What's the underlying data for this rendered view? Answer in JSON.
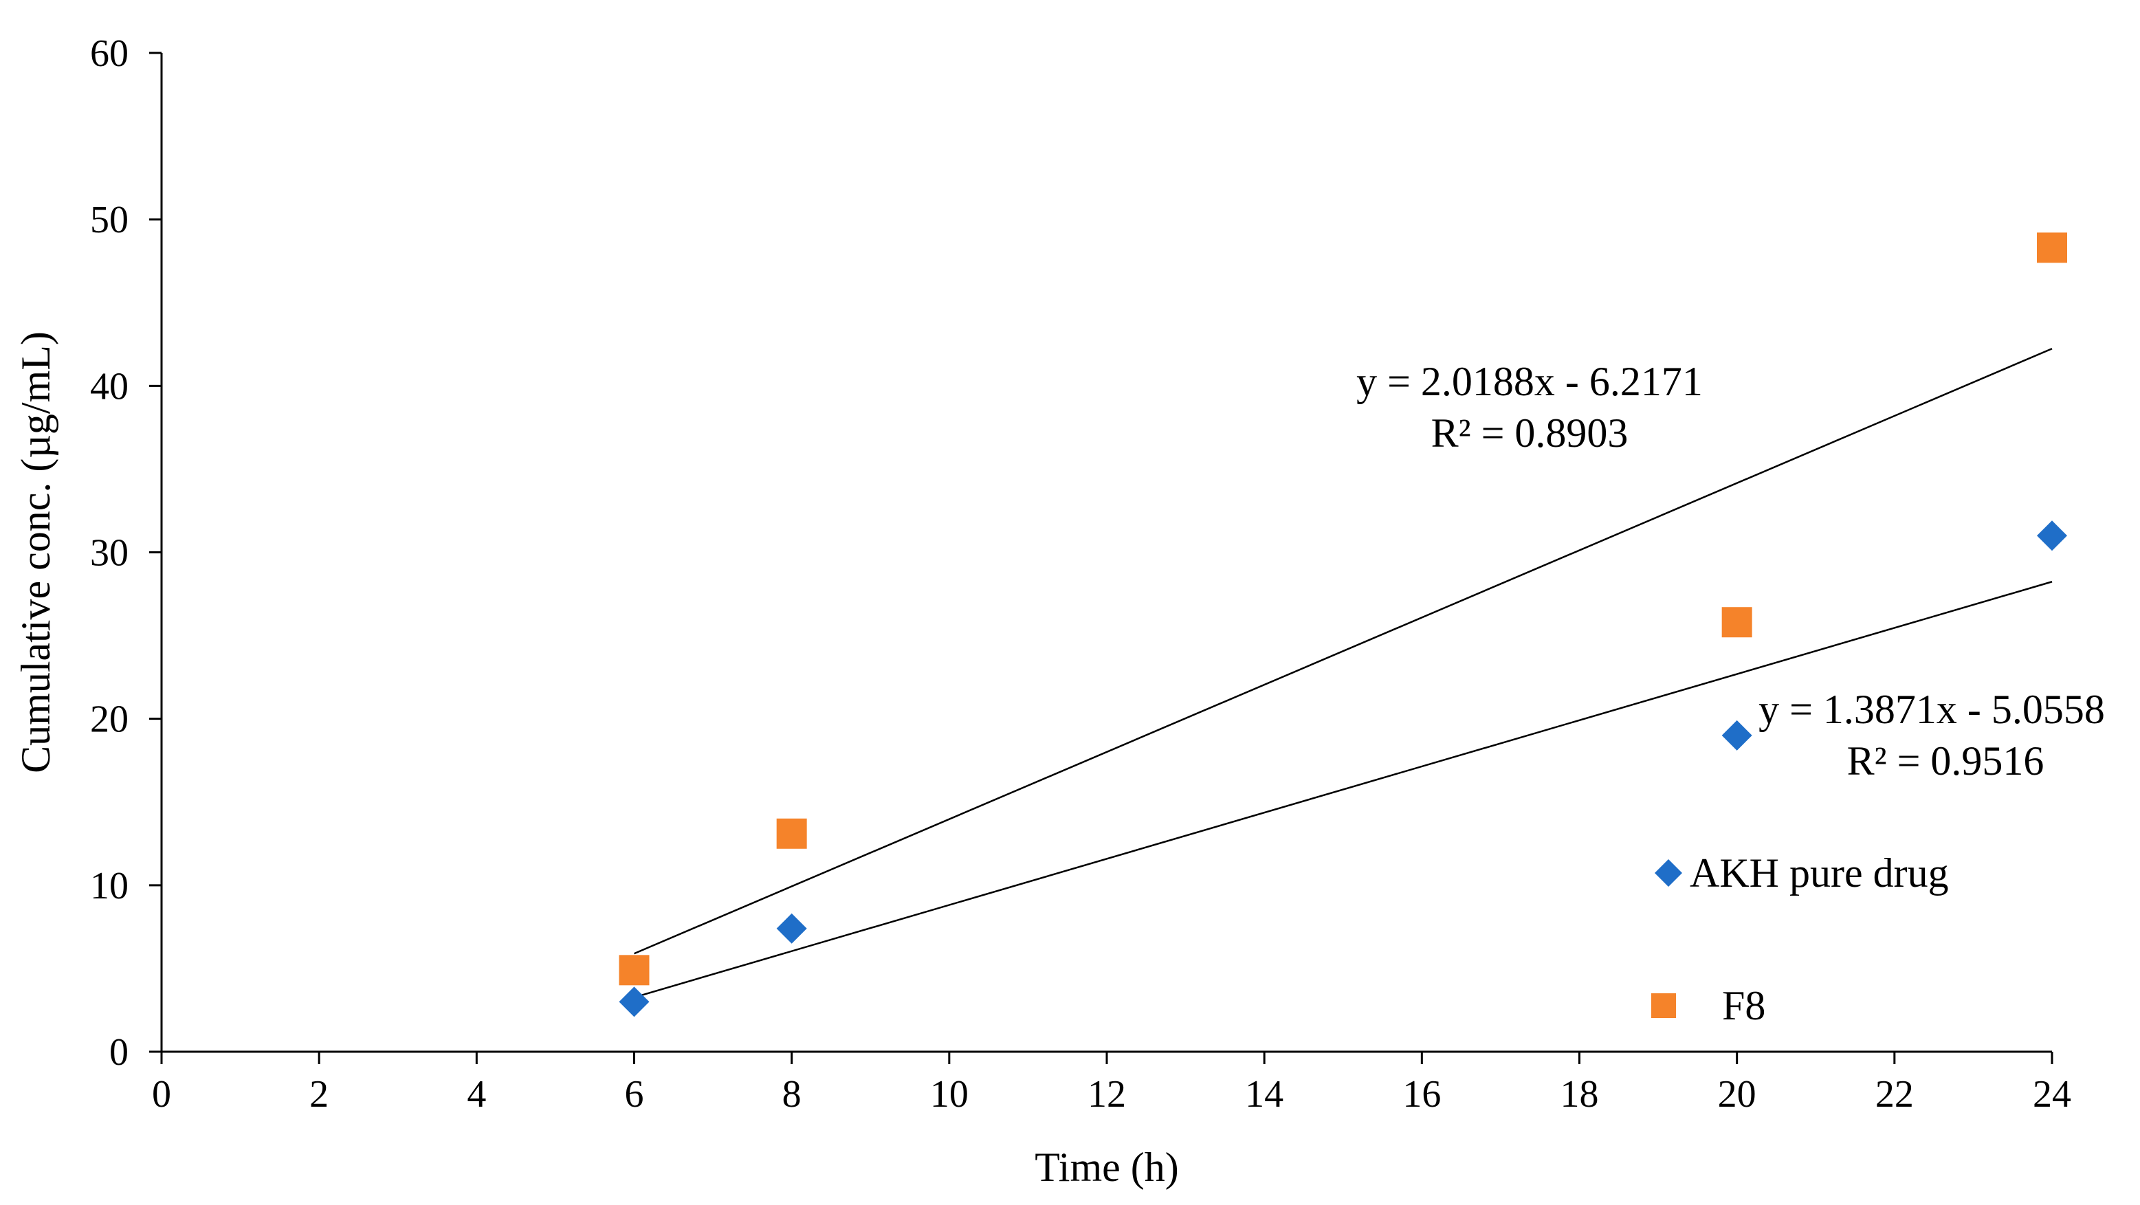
{
  "chart_data": {
    "type": "scatter",
    "title": "",
    "xlabel": "Time (h)",
    "ylabel": "Cumulative conc. (µg/mL)",
    "xlim": [
      0,
      24
    ],
    "ylim": [
      0,
      60
    ],
    "xticks": [
      0,
      2,
      4,
      6,
      8,
      10,
      12,
      14,
      16,
      18,
      20,
      22,
      24
    ],
    "yticks": [
      0,
      10,
      20,
      30,
      40,
      50,
      60
    ],
    "grid": false,
    "legend_position": "right",
    "series": [
      {
        "name": "AKH pure drug",
        "marker": "diamond",
        "color": "#1f6ec8",
        "x": [
          6,
          8,
          20,
          24
        ],
        "y": [
          3.0,
          7.4,
          19.0,
          31.0
        ],
        "trendline": {
          "slope": 1.3871,
          "intercept": -5.0558,
          "x_range": [
            6,
            24
          ],
          "equation": "y = 1.3871x - 5.0558",
          "r2": "R² = 0.9516"
        }
      },
      {
        "name": "F8",
        "marker": "square",
        "color": "#f5832a",
        "x": [
          6,
          8,
          20,
          24
        ],
        "y": [
          4.9,
          13.1,
          25.8,
          48.3
        ],
        "trendline": {
          "slope": 2.0188,
          "intercept": -6.2171,
          "x_range": [
            6,
            24
          ],
          "equation": "y = 2.0188x - 6.2171",
          "r2": "R² = 0.8903"
        }
      }
    ]
  }
}
